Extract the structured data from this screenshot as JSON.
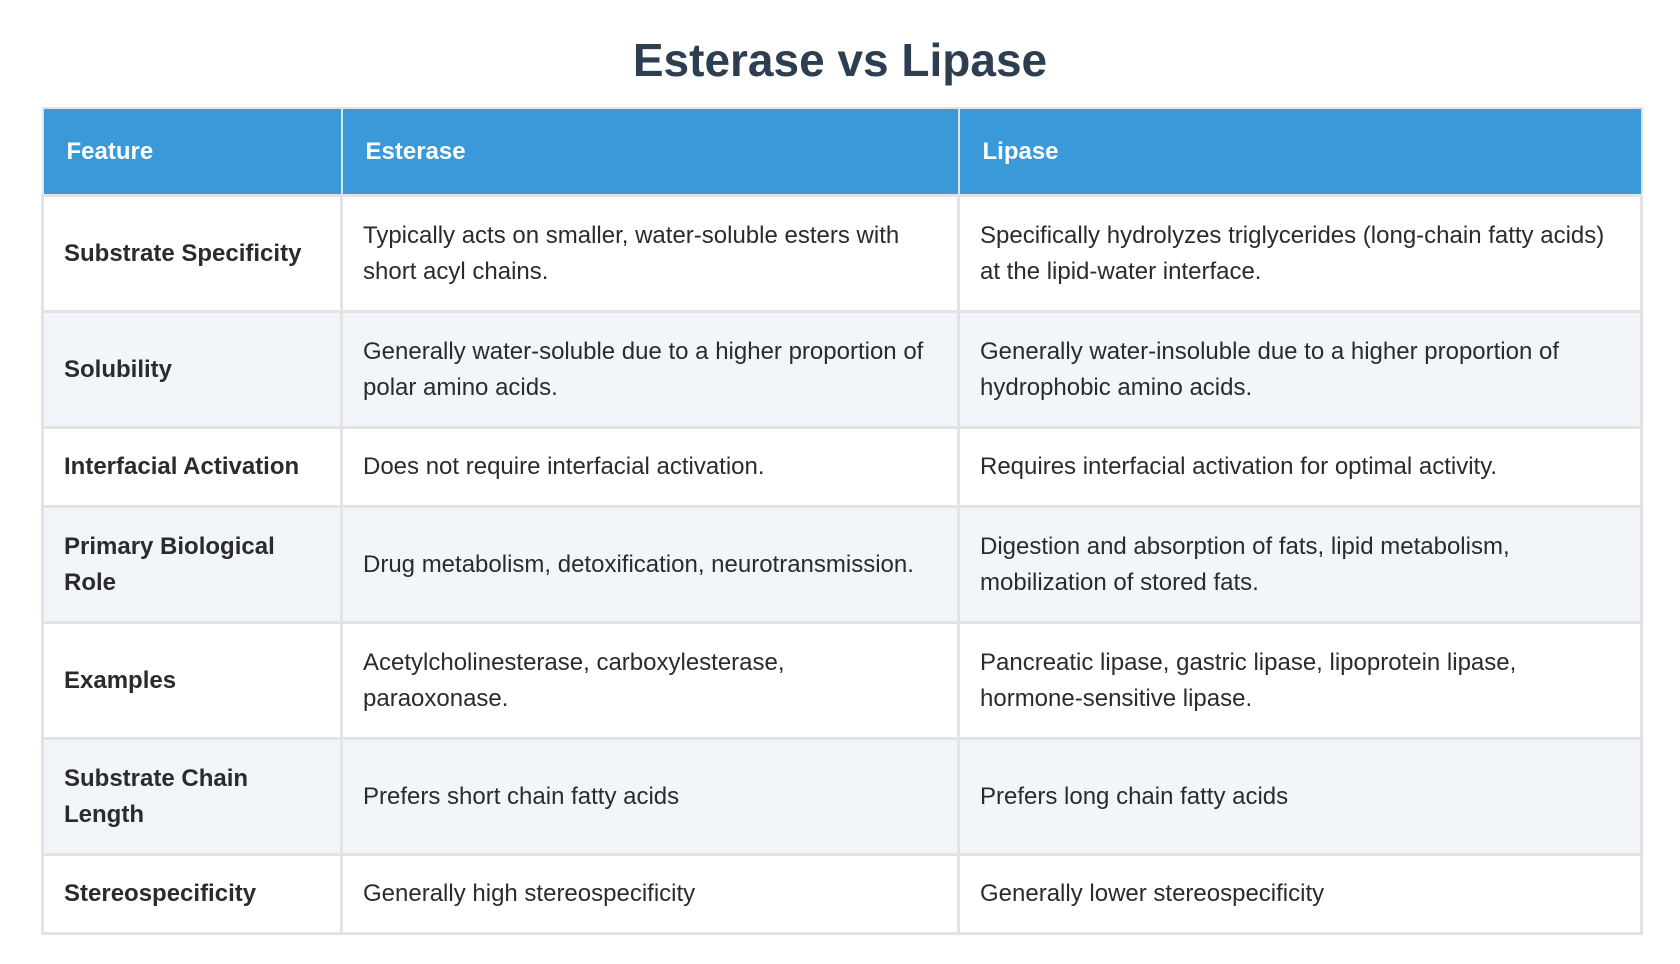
{
  "title": "Esterase vs Lipase",
  "table": {
    "headers": [
      "Feature",
      "Esterase",
      "Lipase"
    ],
    "rows": [
      {
        "feature": "Substrate Specificity",
        "esterase": "Typically acts on smaller, water-soluble esters with short acyl chains.",
        "lipase": "Specifically hydrolyzes triglycerides (long-chain fatty acids) at the lipid-water interface."
      },
      {
        "feature": "Solubility",
        "esterase": "Generally water-soluble due to a higher proportion of polar amino acids.",
        "lipase": "Generally water-insoluble due to a higher proportion of hydrophobic amino acids."
      },
      {
        "feature": "Interfacial Activation",
        "esterase": "Does not require interfacial activation.",
        "lipase": "Requires interfacial activation for optimal activity."
      },
      {
        "feature": "Primary Biological Role",
        "esterase": "Drug metabolism, detoxification, neurotransmission.",
        "lipase": "Digestion and absorption of fats, lipid metabolism, mobilization of stored fats."
      },
      {
        "feature": "Examples",
        "esterase": "Acetylcholinesterase, carboxylesterase, paraoxonase.",
        "lipase": "Pancreatic lipase, gastric lipase, lipoprotein lipase, hormone-sensitive lipase."
      },
      {
        "feature": "Substrate Chain Length",
        "esterase": "Prefers short chain fatty acids",
        "lipase": "Prefers long chain fatty acids"
      },
      {
        "feature": "Stereospecificity",
        "esterase": "Generally high stereospecificity",
        "lipase": "Generally lower stereospecificity"
      }
    ]
  },
  "colors": {
    "header_bg": "#3a9ad9",
    "title": "#2c3e50",
    "stripe": "#f2f5fa",
    "border": "#e3e3e3"
  }
}
